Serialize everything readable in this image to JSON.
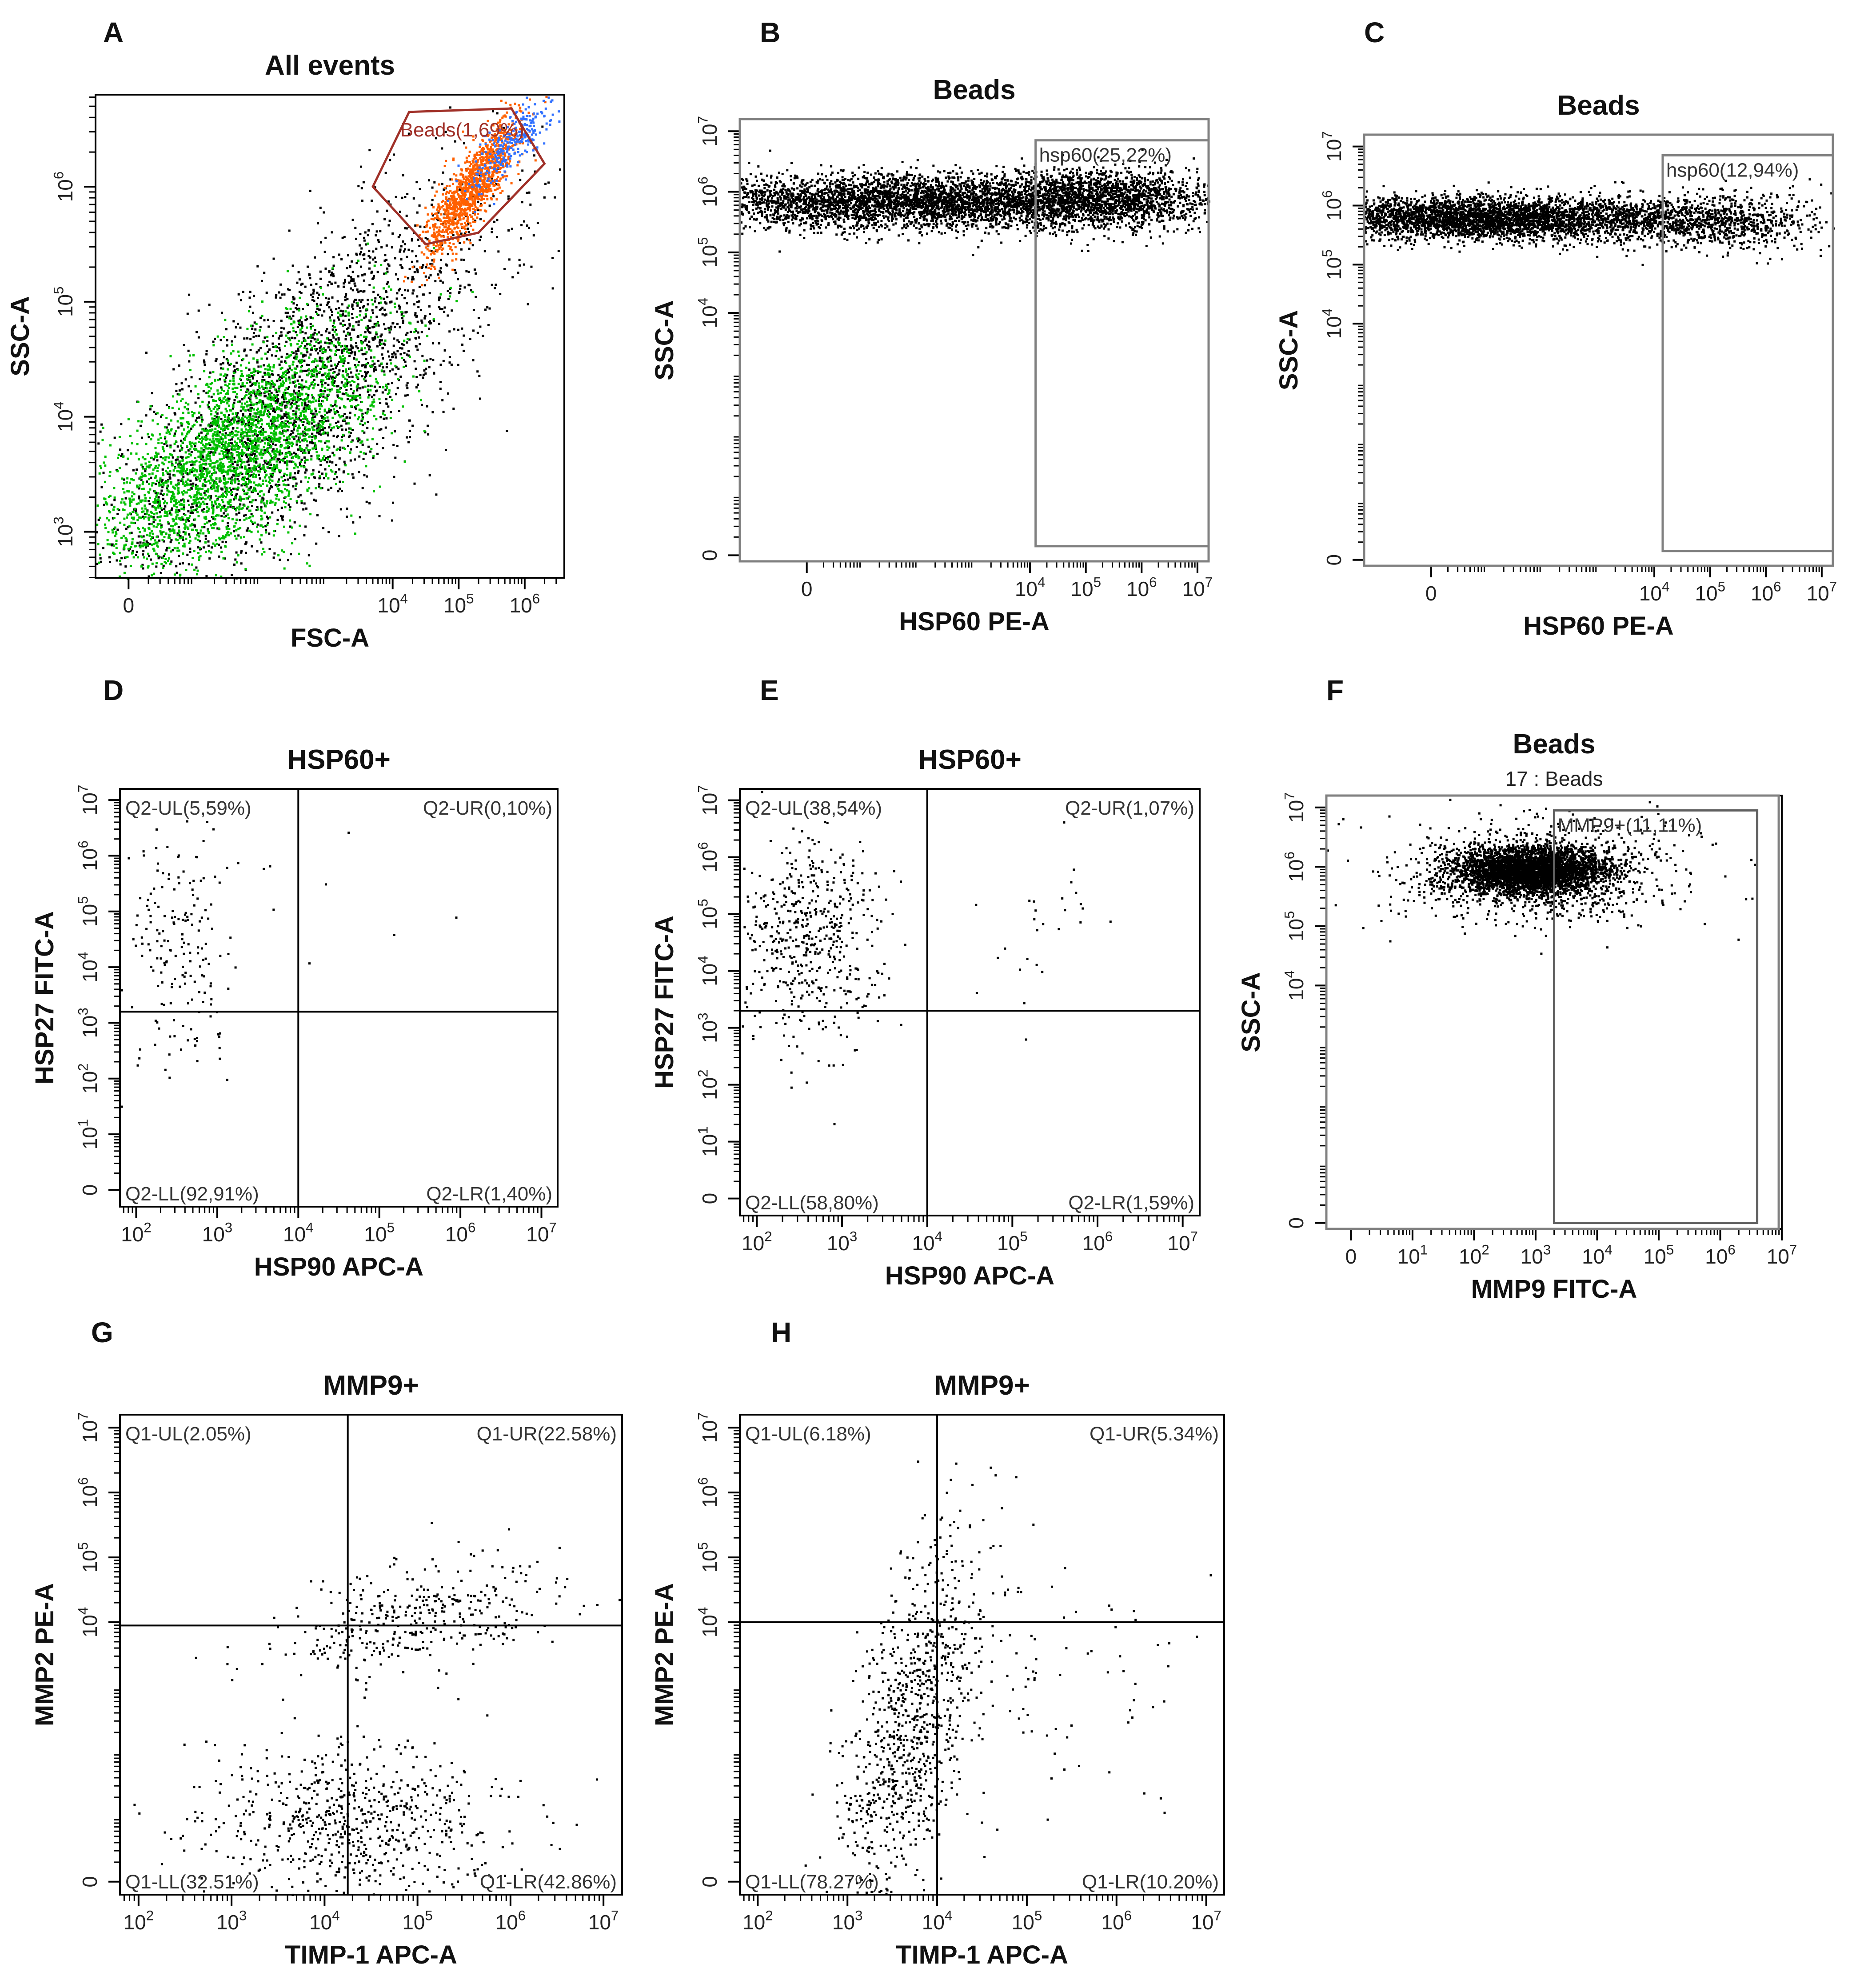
{
  "chart_data": [
    {
      "panel": "A",
      "type": "scatter",
      "title": "All events",
      "xlabel": "FSC-A",
      "ylabel": "SSC-A",
      "xscale": "log",
      "yscale": "log",
      "xlim": [
        -0.5,
        6.6
      ],
      "ylim": [
        2.6,
        6.8
      ],
      "xticks": [
        {
          "v": 0,
          "t": "0"
        },
        {
          "v": 4,
          "t": "10^4"
        },
        {
          "v": 5,
          "t": "10^5"
        },
        {
          "v": 6,
          "t": "10^6"
        }
      ],
      "yticks": [
        {
          "v": 3,
          "t": "10^3"
        },
        {
          "v": 4,
          "t": "10^4"
        },
        {
          "v": 5,
          "t": "10^5"
        },
        {
          "v": 6,
          "t": "10^6"
        }
      ],
      "populations": [
        {
          "name": "all events",
          "color": "#000000",
          "n": 2600,
          "cx": 2.6,
          "cy": 4.2,
          "sx": 1.5,
          "sy": 0.9,
          "rho": 0.75
        },
        {
          "name": "green events",
          "color": "#00c000",
          "n": 3000,
          "cx": 1.6,
          "cy": 3.7,
          "sx": 1.1,
          "sy": 0.55,
          "rho": 0.7
        },
        {
          "name": "bead events",
          "color": "#ff6000",
          "n": 1200,
          "cx": 5.2,
          "cy": 6.0,
          "sx": 0.35,
          "sy": 0.3,
          "rho": 0.85
        },
        {
          "name": "blue events",
          "color": "#3070ff",
          "n": 260,
          "cx": 5.8,
          "cy": 6.4,
          "sx": 0.3,
          "sy": 0.2,
          "rho": 0.8
        }
      ],
      "gates": [
        {
          "label": "Beads(1,69%)",
          "shape": "polygon",
          "color": "#a03028",
          "points": [
            [
              3.7,
              6.0
            ],
            [
              4.25,
              6.65
            ],
            [
              5.8,
              6.68
            ],
            [
              6.3,
              6.2
            ],
            [
              5.3,
              5.6
            ],
            [
              4.5,
              5.5
            ]
          ]
        }
      ]
    },
    {
      "panel": "B",
      "type": "scatter",
      "title": "Beads",
      "xlabel": "HSP60 PE-A",
      "ylabel": "SSC-A",
      "xscale": "log",
      "yscale": "log",
      "xlim": [
        -1.2,
        7.2
      ],
      "ylim": [
        -0.1,
        7.2
      ],
      "xticks": [
        {
          "v": 0,
          "t": "0"
        },
        {
          "v": 4,
          "t": "10^4"
        },
        {
          "v": 5,
          "t": "10^5"
        },
        {
          "v": 6,
          "t": "10^6"
        },
        {
          "v": 7,
          "t": "10^7"
        }
      ],
      "yticks": [
        {
          "v": 0,
          "t": "0"
        },
        {
          "v": 4,
          "t": "10^4"
        },
        {
          "v": 5,
          "t": "10^5"
        },
        {
          "v": 6,
          "t": "10^6"
        },
        {
          "v": 7,
          "t": "10^7"
        }
      ],
      "populations": [
        {
          "name": "core",
          "color": "#000000",
          "n": 4200,
          "cx": 2.0,
          "cy": 5.85,
          "sx": 2.3,
          "sy": 0.22,
          "rho": 0
        },
        {
          "name": "right",
          "color": "#000000",
          "n": 1400,
          "cx": 5.3,
          "cy": 5.9,
          "sx": 1.0,
          "sy": 0.25,
          "rho": 0
        }
      ],
      "gates": [
        {
          "label": "",
          "shape": "rect",
          "color": "#808080",
          "x1": -1.2,
          "x2": 7.2,
          "y1": -0.1,
          "y2": 7.2
        },
        {
          "label": "hsp60(25,22%)",
          "shape": "rect",
          "color": "#808080",
          "x1": 4.1,
          "x2": 7.2,
          "y1": 0.15,
          "y2": 6.85
        }
      ]
    },
    {
      "panel": "C",
      "type": "scatter",
      "title": "Beads",
      "xlabel": "HSP60 PE-A",
      "ylabel": "SSC-A",
      "xscale": "log",
      "yscale": "log",
      "xlim": [
        -1.2,
        7.2
      ],
      "ylim": [
        -0.1,
        7.2
      ],
      "xticks": [
        {
          "v": 0,
          "t": "0"
        },
        {
          "v": 4,
          "t": "10^4"
        },
        {
          "v": 5,
          "t": "10^5"
        },
        {
          "v": 6,
          "t": "10^6"
        },
        {
          "v": 7,
          "t": "10^7"
        }
      ],
      "yticks": [
        {
          "v": 0,
          "t": "0"
        },
        {
          "v": 4,
          "t": "10^4"
        },
        {
          "v": 5,
          "t": "10^5"
        },
        {
          "v": 6,
          "t": "10^6"
        },
        {
          "v": 7,
          "t": "10^7"
        }
      ],
      "populations": [
        {
          "name": "core",
          "color": "#000000",
          "n": 4000,
          "cx": 1.0,
          "cy": 5.8,
          "sx": 1.9,
          "sy": 0.18,
          "rho": 0
        },
        {
          "name": "right",
          "color": "#000000",
          "n": 800,
          "cx": 5.0,
          "cy": 5.75,
          "sx": 1.0,
          "sy": 0.25,
          "rho": 0
        }
      ],
      "gates": [
        {
          "label": "",
          "shape": "rect",
          "color": "#808080",
          "x1": -1.2,
          "x2": 7.2,
          "y1": -0.1,
          "y2": 7.2
        },
        {
          "label": "hsp60(12,94%)",
          "shape": "rect",
          "color": "#808080",
          "x1": 4.15,
          "x2": 7.2,
          "y1": 0.15,
          "y2": 6.85
        }
      ]
    },
    {
      "panel": "D",
      "type": "scatter",
      "title": "HSP60+",
      "xlabel": "HSP90 APC-A",
      "ylabel": "HSP27 FITC-A",
      "xscale": "log",
      "yscale": "log",
      "xlim": [
        1.8,
        7.2
      ],
      "ylim": [
        -0.3,
        7.2
      ],
      "xticks": [
        {
          "v": 2,
          "t": "10^2"
        },
        {
          "v": 3,
          "t": "10^3"
        },
        {
          "v": 4,
          "t": "10^4"
        },
        {
          "v": 5,
          "t": "10^5"
        },
        {
          "v": 6,
          "t": "10^6"
        },
        {
          "v": 7,
          "t": "10^7"
        }
      ],
      "yticks": [
        {
          "v": 0,
          "t": "0"
        },
        {
          "v": 1,
          "t": "10^1"
        },
        {
          "v": 2,
          "t": "10^2"
        },
        {
          "v": 3,
          "t": "10^3"
        },
        {
          "v": 4,
          "t": "10^4"
        },
        {
          "v": 5,
          "t": "10^5"
        },
        {
          "v": 6,
          "t": "10^6"
        },
        {
          "v": 7,
          "t": "10^7"
        }
      ],
      "populations": [
        {
          "name": "upper-left",
          "color": "#000000",
          "n": 180,
          "cx": 2.55,
          "cy": 4.3,
          "sx": 0.35,
          "sy": 1.1,
          "rho": 0
        },
        {
          "name": "scattered",
          "color": "#000000",
          "n": 8,
          "cx": 4.8,
          "cy": 5.5,
          "sx": 0.8,
          "sy": 0.8,
          "rho": 0
        }
      ],
      "quadrant": {
        "x": 4.0,
        "y": 3.2
      },
      "quadrant_labels": {
        "ul": "Q2-UL(5,59%)",
        "ur": "Q2-UR(0,10%)",
        "ll": "Q2-LL(92,91%)",
        "lr": "Q2-LR(1,40%)"
      }
    },
    {
      "panel": "E",
      "type": "scatter",
      "title": "HSP60+",
      "xlabel": "HSP90 APC-A",
      "ylabel": "HSP27 FITC-A",
      "xscale": "log",
      "yscale": "log",
      "xlim": [
        1.8,
        7.2
      ],
      "ylim": [
        -0.3,
        7.2
      ],
      "xticks": [
        {
          "v": 2,
          "t": "10^2"
        },
        {
          "v": 3,
          "t": "10^3"
        },
        {
          "v": 4,
          "t": "10^4"
        },
        {
          "v": 5,
          "t": "10^5"
        },
        {
          "v": 6,
          "t": "10^6"
        },
        {
          "v": 7,
          "t": "10^7"
        }
      ],
      "yticks": [
        {
          "v": 0,
          "t": "0"
        },
        {
          "v": 1,
          "t": "10^1"
        },
        {
          "v": 2,
          "t": "10^2"
        },
        {
          "v": 3,
          "t": "10^3"
        },
        {
          "v": 4,
          "t": "10^4"
        },
        {
          "v": 5,
          "t": "10^5"
        },
        {
          "v": 6,
          "t": "10^6"
        },
        {
          "v": 7,
          "t": "10^7"
        }
      ],
      "populations": [
        {
          "name": "upper-left",
          "color": "#000000",
          "n": 520,
          "cx": 2.6,
          "cy": 4.5,
          "sx": 0.4,
          "sy": 0.9,
          "rho": 0
        },
        {
          "name": "upper-right",
          "color": "#000000",
          "n": 30,
          "cx": 5.2,
          "cy": 4.8,
          "sx": 0.6,
          "sy": 0.8,
          "rho": 0
        }
      ],
      "quadrant": {
        "x": 4.0,
        "y": 3.3
      },
      "quadrant_labels": {
        "ul": "Q2-UL(38,54%)",
        "ur": "Q2-UR(1,07%)",
        "ll": "Q2-LL(58,80%)",
        "lr": "Q2-LR(1,59%)"
      }
    },
    {
      "panel": "F",
      "type": "scatter",
      "title": "Beads",
      "subtitle": "17 : Beads",
      "xlabel": "MMP9 FITC-A",
      "ylabel": "SSC-A",
      "xscale": "log",
      "yscale": "log",
      "xlim": [
        -0.4,
        7.0
      ],
      "ylim": [
        -0.1,
        7.2
      ],
      "xticks": [
        {
          "v": 0,
          "t": "0"
        },
        {
          "v": 1,
          "t": "10^1"
        },
        {
          "v": 2,
          "t": "10^2"
        },
        {
          "v": 3,
          "t": "10^3"
        },
        {
          "v": 4,
          "t": "10^4"
        },
        {
          "v": 5,
          "t": "10^5"
        },
        {
          "v": 6,
          "t": "10^6"
        },
        {
          "v": 7,
          "t": "10^7"
        }
      ],
      "yticks": [
        {
          "v": 0,
          "t": "0"
        },
        {
          "v": 4,
          "t": "10^4"
        },
        {
          "v": 5,
          "t": "10^5"
        },
        {
          "v": 6,
          "t": "10^6"
        },
        {
          "v": 7,
          "t": "10^7"
        }
      ],
      "populations": [
        {
          "name": "core",
          "color": "#000000",
          "n": 3600,
          "cx": 2.9,
          "cy": 5.95,
          "sx": 0.6,
          "sy": 0.2,
          "rho": 0
        },
        {
          "name": "halo",
          "color": "#000000",
          "n": 900,
          "cx": 3.0,
          "cy": 5.9,
          "sx": 1.2,
          "sy": 0.45,
          "rho": 0
        }
      ],
      "gates": [
        {
          "label": "",
          "shape": "rect",
          "color": "#808080",
          "x1": -0.4,
          "x2": 6.95,
          "y1": -0.1,
          "y2": 7.2
        },
        {
          "label": "MMP9+(11,11%)",
          "shape": "rect",
          "color": "#606060",
          "x1": 3.3,
          "x2": 6.6,
          "y1": 0.0,
          "y2": 6.95
        }
      ]
    },
    {
      "panel": "G",
      "type": "scatter",
      "title": "MMP9+",
      "xlabel": "TIMP-1 APC-A",
      "ylabel": "MMP2 PE-A",
      "xscale": "log",
      "yscale": "log",
      "xlim": [
        1.8,
        7.2
      ],
      "ylim": [
        -0.2,
        7.2
      ],
      "xticks": [
        {
          "v": 2,
          "t": "10^2"
        },
        {
          "v": 3,
          "t": "10^3"
        },
        {
          "v": 4,
          "t": "10^4"
        },
        {
          "v": 5,
          "t": "10^5"
        },
        {
          "v": 6,
          "t": "10^6"
        },
        {
          "v": 7,
          "t": "10^7"
        }
      ],
      "yticks": [
        {
          "v": 0,
          "t": "0"
        },
        {
          "v": 4,
          "t": "10^4"
        },
        {
          "v": 5,
          "t": "10^5"
        },
        {
          "v": 6,
          "t": "10^6"
        },
        {
          "v": 7,
          "t": "10^7"
        }
      ],
      "populations": [
        {
          "name": "lower",
          "color": "#000000",
          "n": 700,
          "cx": 4.3,
          "cy": 0.9,
          "sx": 0.8,
          "sy": 0.6,
          "rho": 0
        },
        {
          "name": "upper-right",
          "color": "#000000",
          "n": 380,
          "cx": 5.0,
          "cy": 4.1,
          "sx": 0.7,
          "sy": 0.5,
          "rho": 0.4
        }
      ],
      "quadrant": {
        "x": 4.25,
        "y": 3.95
      },
      "quadrant_labels": {
        "ul": "Q1-UL(2.05%)",
        "ur": "Q1-UR(22.58%)",
        "ll": "Q1-LL(32.51%)",
        "lr": "Q1-LR(42.86%)"
      }
    },
    {
      "panel": "H",
      "type": "scatter",
      "title": "MMP9+",
      "xlabel": "TIMP-1 APC-A",
      "ylabel": "MMP2 PE-A",
      "xscale": "log",
      "yscale": "log",
      "xlim": [
        1.8,
        7.2
      ],
      "ylim": [
        -0.2,
        7.2
      ],
      "xticks": [
        {
          "v": 2,
          "t": "10^2"
        },
        {
          "v": 3,
          "t": "10^3"
        },
        {
          "v": 4,
          "t": "10^4"
        },
        {
          "v": 5,
          "t": "10^5"
        },
        {
          "v": 6,
          "t": "10^6"
        },
        {
          "v": 7,
          "t": "10^7"
        }
      ],
      "yticks": [
        {
          "v": 0,
          "t": "0"
        },
        {
          "v": 4,
          "t": "10^4"
        },
        {
          "v": 5,
          "t": "10^5"
        },
        {
          "v": 6,
          "t": "10^6"
        },
        {
          "v": 7,
          "t": "10^7"
        }
      ],
      "populations": [
        {
          "name": "lower-left",
          "color": "#000000",
          "n": 900,
          "cx": 3.7,
          "cy": 2.3,
          "sx": 0.4,
          "sy": 1.4,
          "rho": 0.6
        },
        {
          "name": "lower-right",
          "color": "#000000",
          "n": 90,
          "cx": 5.3,
          "cy": 2.8,
          "sx": 0.9,
          "sy": 1.0,
          "rho": 0
        }
      ],
      "quadrant": {
        "x": 4.0,
        "y": 4.0
      },
      "quadrant_labels": {
        "ul": "Q1-UL(6.18%)",
        "ur": "Q1-UR(5.34%)",
        "ll": "Q1-LL(78.27%)",
        "lr": "Q1-LR(10.20%)"
      }
    }
  ]
}
